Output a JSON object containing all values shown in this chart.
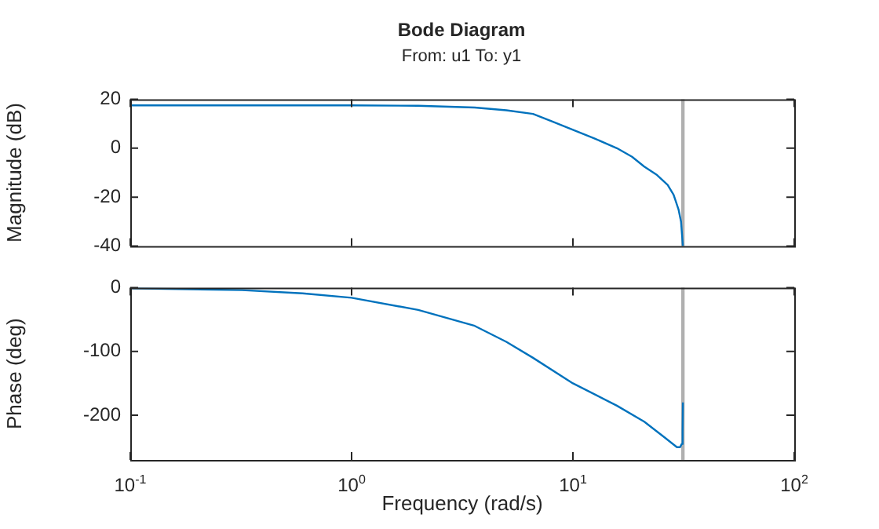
{
  "chart_data": [
    {
      "type": "line",
      "title": "Bode Diagram",
      "subtitle": "From: u1  To: y1",
      "ylabel": "Magnitude (dB)",
      "tick_labels": "y",
      "log": "x",
      "grid": false,
      "legend": false,
      "marker": "none",
      "line_style": "solid",
      "xlim": [
        0.1,
        100
      ],
      "xticks": [
        {
          "value": 0.1,
          "label": null
        },
        {
          "value": 1,
          "label": null
        },
        {
          "value": 10,
          "label": null
        },
        {
          "value": 100,
          "label": null
        }
      ],
      "ylim": [
        -40,
        20
      ],
      "yticks": [
        -40,
        -20,
        0,
        20
      ],
      "ref_lines": [
        {
          "axis": "x",
          "value": 31.4,
          "color": "#b0b0b0"
        }
      ],
      "series": [
        {
          "color": "#0072bd",
          "x": [
            0.1,
            0.3,
            1,
            2,
            3.6,
            5,
            6.6,
            8,
            10,
            12.5,
            15.8,
            18.5,
            21,
            24,
            26.8,
            28.5,
            30,
            30.8,
            31.4
          ],
          "values": [
            17.5,
            17.5,
            17.5,
            17.3,
            16.6,
            15.5,
            14,
            11,
            7.5,
            4,
            0,
            -3.5,
            -7.5,
            -11,
            -15,
            -19,
            -25,
            -30,
            -40
          ]
        }
      ]
    },
    {
      "type": "line",
      "xlabel": "Frequency (rad/s)",
      "ylabel": "Phase (deg)",
      "log": "x",
      "grid": false,
      "legend": false,
      "marker": "none",
      "line_style": "solid",
      "xlim": [
        0.1,
        100
      ],
      "xticks": [
        {
          "value": 0.1,
          "label": "10$^{-1}$"
        },
        {
          "value": 1,
          "label": "10$^{0}$"
        },
        {
          "value": 10,
          "label": "10$^{1}$"
        },
        {
          "value": 100,
          "label": "10$^{2}$"
        }
      ],
      "ylim": [
        -270,
        0
      ],
      "yticks": [
        -200,
        -100,
        0
      ],
      "ref_lines": [
        {
          "axis": "x",
          "value": 31.4,
          "color": "#b0b0b0"
        }
      ],
      "series": [
        {
          "color": "#0072bd",
          "x": [
            0.1,
            0.32,
            0.6,
            1,
            2,
            3.6,
            5,
            6.6,
            10,
            15.8,
            21,
            26,
            29.5,
            30.5,
            31,
            31.3,
            31.4
          ],
          "values": [
            -1,
            -4,
            -9,
            -16,
            -35,
            -60,
            -85,
            -110,
            -150,
            -185,
            -210,
            -235,
            -250,
            -250,
            -245,
            -225,
            -180
          ]
        }
      ]
    }
  ]
}
